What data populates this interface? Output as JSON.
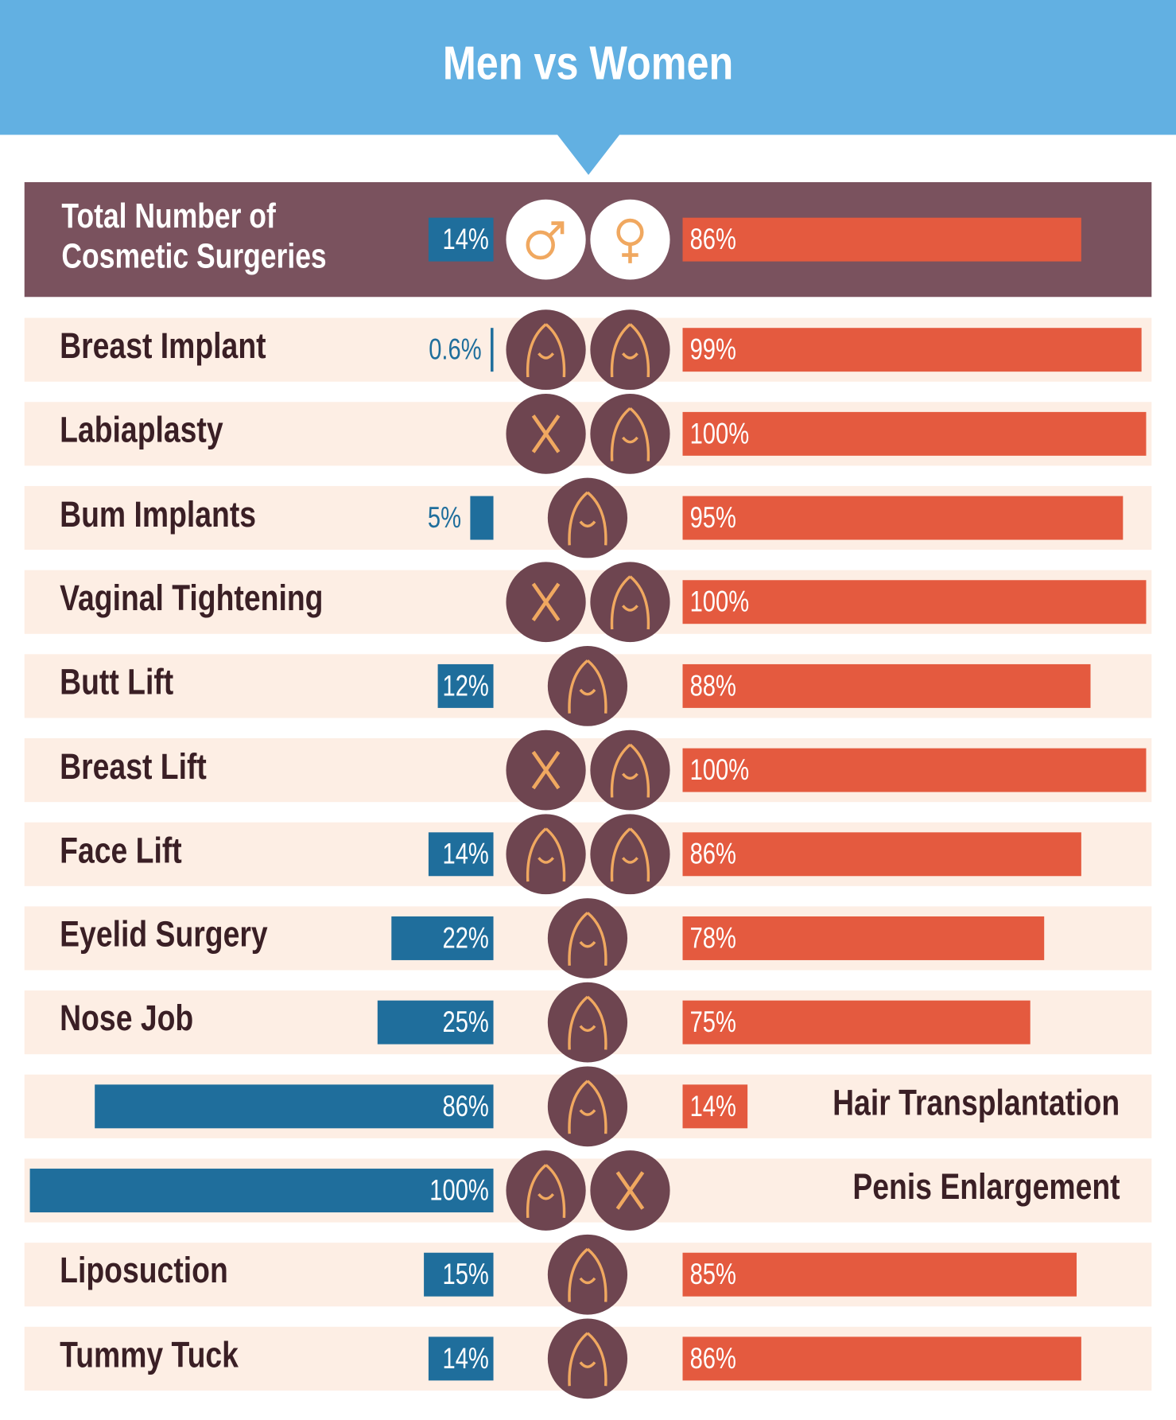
{
  "chart_data": {
    "type": "diverging_bar",
    "title": "Men vs Women",
    "categories": [
      "Total Number of Cosmetic Surgeries",
      "Breast Implant",
      "Labiaplasty",
      "Bum Implants",
      "Vaginal Tightening",
      "Butt Lift",
      "Breast Lift",
      "Face Lift",
      "Eyelid Surgery",
      "Nose Job",
      "Hair Transplantation",
      "Penis Enlargement",
      "Liposuction",
      "Tummy Tuck"
    ],
    "series": [
      {
        "color": "#1f6e9c",
        "values": [
          14,
          0.6,
          0,
          5,
          0,
          12,
          0,
          14,
          22,
          25,
          86,
          100,
          15,
          14
        ],
        "value_labels": [
          "14%",
          "0.6%",
          null,
          "5%",
          null,
          "12%",
          null,
          "14%",
          "22%",
          "25%",
          "86%",
          "100%",
          "15%",
          "14%"
        ]
      },
      {
        "color": "#e45a3f",
        "values": [
          86,
          99,
          100,
          95,
          100,
          88,
          100,
          86,
          78,
          75,
          14,
          0,
          85,
          86
        ],
        "value_labels": [
          "86%",
          "99%",
          "100%",
          "95%",
          "100%",
          "88%",
          "100%",
          "86%",
          "78%",
          "75%",
          "14%",
          null,
          "85%",
          "86%"
        ]
      }
    ],
    "xlim": [
      0,
      100
    ]
  }
}
